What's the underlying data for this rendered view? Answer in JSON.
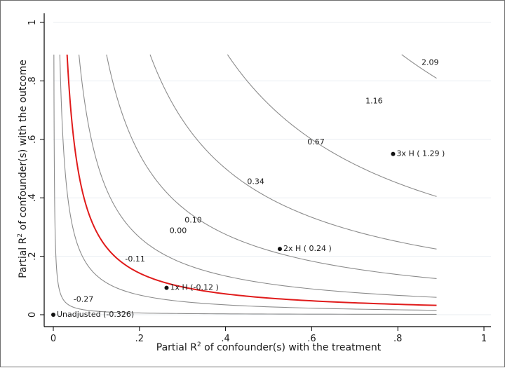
{
  "chart_data": {
    "type": "line",
    "title": "",
    "xlabel": "Partial R² of confounder(s) with the treatment",
    "ylabel": "Partial R² of confounder(s) with the outcome",
    "xlabel_parts": {
      "pre": "Partial R",
      "sup": "2",
      "post": " of confounder(s) with the treatment"
    },
    "ylabel_parts": {
      "pre": "Partial R",
      "sup": "2",
      "post": " of confounder(s) with the outcome"
    },
    "xlim": [
      0,
      1
    ],
    "ylim": [
      0,
      1
    ],
    "xticks": [
      {
        "value": 0,
        "label": "0"
      },
      {
        "value": 0.2,
        "label": ".2"
      },
      {
        "value": 0.4,
        "label": ".4"
      },
      {
        "value": 0.6,
        "label": ".6"
      },
      {
        "value": 0.8,
        "label": ".8"
      },
      {
        "value": 1,
        "label": "1"
      }
    ],
    "yticks": [
      {
        "value": 0,
        "label": "0"
      },
      {
        "value": 0.2,
        "label": ".2"
      },
      {
        "value": 0.4,
        "label": ".4"
      },
      {
        "value": 0.6,
        "label": ".6"
      },
      {
        "value": 0.8,
        "label": ".8"
      },
      {
        "value": 1,
        "label": "1"
      }
    ],
    "grid": true,
    "contour_max": 0.89,
    "colors": {
      "contour": "#8c8c8c",
      "threshold": "#e01b1b",
      "grid": "#e9eef2",
      "point": "#111111",
      "unadjusted": "#a0302a"
    },
    "contours": [
      {
        "level": "-0.27",
        "k": 0.0012,
        "threshold": false,
        "label_at": [
          0.07,
          0.052
        ]
      },
      {
        "level": "-0.11",
        "k": 0.0135,
        "threshold": false,
        "label_at": [
          0.19,
          0.19
        ]
      },
      {
        "level": "0.00",
        "k": 0.0285,
        "threshold": true,
        "label_at": [
          0.29,
          0.287
        ]
      },
      {
        "level": "0.10",
        "k": 0.053,
        "threshold": false,
        "label_at": [
          0.325,
          0.323
        ]
      },
      {
        "level": "0.34",
        "k": 0.11,
        "threshold": false,
        "label_at": [
          0.47,
          0.455
        ]
      },
      {
        "level": "0.67",
        "k": 0.2,
        "threshold": false,
        "label_at": [
          0.61,
          0.59
        ]
      },
      {
        "level": "1.16",
        "k": 0.36,
        "threshold": false,
        "label_at": [
          0.745,
          0.73
        ]
      },
      {
        "level": "2.09",
        "k": 0.72,
        "threshold": false,
        "label_at": [
          0.875,
          0.862
        ]
      }
    ],
    "points": [
      {
        "label": "Unadjusted (-0.326)",
        "x": 0.0,
        "y": 0.0,
        "unadjusted": true
      },
      {
        "label": "1x H (-0.12 )",
        "x": 0.263,
        "y": 0.092,
        "unadjusted": false
      },
      {
        "label": "2x H ( 0.24 )",
        "x": 0.526,
        "y": 0.225,
        "unadjusted": false
      },
      {
        "label": "3x H ( 1.29 )",
        "x": 0.789,
        "y": 0.55,
        "unadjusted": false
      }
    ]
  }
}
